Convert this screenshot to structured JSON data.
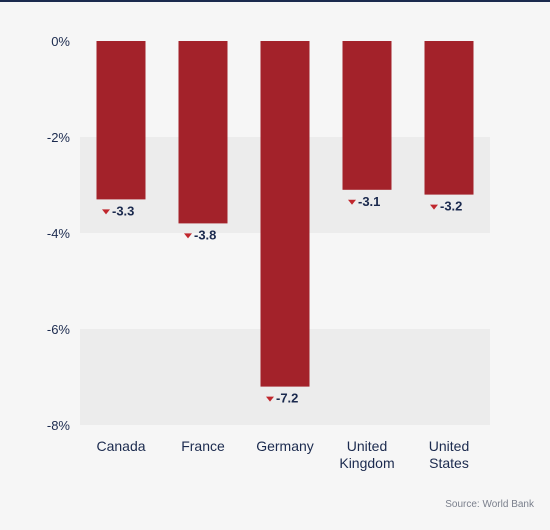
{
  "chart_data": {
    "type": "bar",
    "categories": [
      "Canada",
      "France",
      "Germany",
      "United Kingdom",
      "United States"
    ],
    "category_lines": [
      [
        "Canada"
      ],
      [
        "France"
      ],
      [
        "Germany"
      ],
      [
        "United",
        "Kingdom"
      ],
      [
        "United",
        "States"
      ]
    ],
    "values": [
      -3.3,
      -3.8,
      -7.2,
      -3.1,
      -3.2
    ],
    "value_labels": [
      "-3.3",
      "-3.8",
      "-7.2",
      "-3.1",
      "-3.2"
    ],
    "yticks": [
      0,
      -2,
      -4,
      -6,
      -8
    ],
    "ytick_labels": [
      "0%",
      "-2%",
      "-4%",
      "-6%",
      "-8%"
    ],
    "ylim": [
      -8,
      0
    ],
    "grid": "alternating bands",
    "colors": {
      "bar": "#a3222a",
      "band": "#ececec",
      "text": "#1b2a4e",
      "marker": "#c0272d"
    }
  },
  "source": "Source: World Bank"
}
